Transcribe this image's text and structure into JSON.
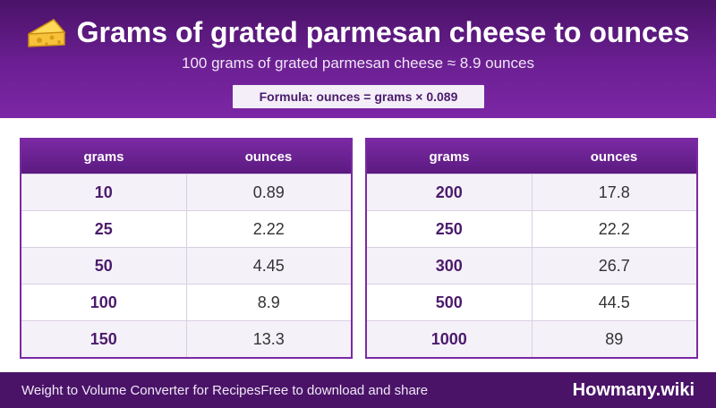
{
  "header": {
    "title": "Grams of grated parmesan cheese to ounces",
    "subtitle": "100 grams of grated parmesan cheese ≈ 8.9 ounces",
    "formula": "Formula: ounces = grams × 0.089",
    "icon": "cheese-icon"
  },
  "tables": [
    {
      "col_grams": "grams",
      "col_ounces": "ounces",
      "rows": [
        {
          "grams": "10",
          "ounces": "0.89"
        },
        {
          "grams": "25",
          "ounces": "2.22"
        },
        {
          "grams": "50",
          "ounces": "4.45"
        },
        {
          "grams": "100",
          "ounces": "8.9"
        },
        {
          "grams": "150",
          "ounces": "13.3"
        }
      ]
    },
    {
      "col_grams": "grams",
      "col_ounces": "ounces",
      "rows": [
        {
          "grams": "200",
          "ounces": "17.8"
        },
        {
          "grams": "250",
          "ounces": "22.2"
        },
        {
          "grams": "300",
          "ounces": "26.7"
        },
        {
          "grams": "500",
          "ounces": "44.5"
        },
        {
          "grams": "1000",
          "ounces": "89"
        }
      ]
    }
  ],
  "footer": {
    "left_text_1": "Weight to Volume Converter for Recipes",
    "left_text_2": "Free to download and share",
    "brand": "Howmany.wiki"
  },
  "colors": {
    "header_purple": "#6c1f93",
    "accent_purple": "#7a2aa3",
    "footer_purple": "#4a1368"
  }
}
